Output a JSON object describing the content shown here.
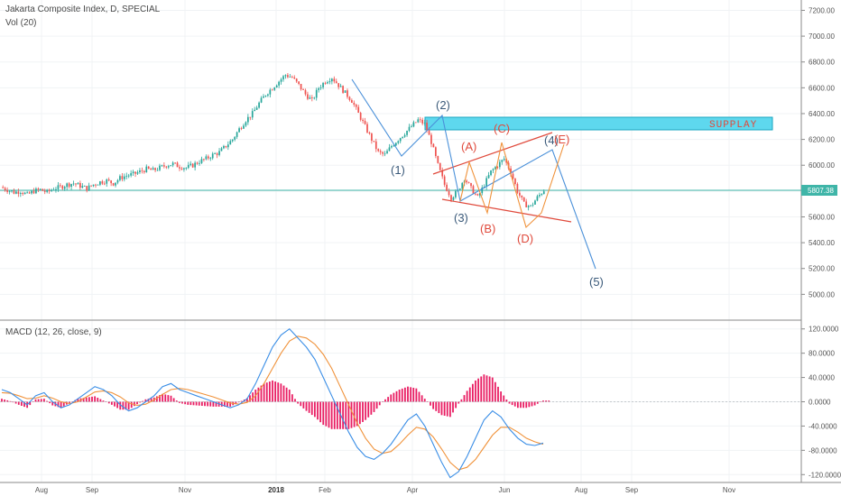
{
  "legend": {
    "title": "Jakarta Composite Index, D, SPECIAL",
    "volume": "Vol (20)",
    "macd": "MACD (12, 26, close, 9)"
  },
  "price_tag": "5807.38",
  "colors": {
    "bull": "#26a69a",
    "bear": "#ef5350",
    "blue_wave": "#4a90d9",
    "orange_wave": "#f0923a",
    "red_channel": "#e04a3c",
    "supply_zone": "#5ed8ee",
    "price_line": "#3fb5a8",
    "macd_line": "#3a8ee6",
    "signal_line": "#f0923a",
    "hist_pos": "#e91e63",
    "hist_neg": "#e91e63"
  },
  "chart_data": [
    {
      "type": "candlestick",
      "title": "Jakarta Composite Index, D, SPECIAL",
      "ylim": [
        4800,
        7280
      ],
      "y_ticks": [
        "7200.00",
        "7000.00",
        "6800.00",
        "6600.00",
        "6400.00",
        "6200.00",
        "6000.00",
        "5800.00",
        "5600.00",
        "5400.00",
        "5200.00",
        "5000.00"
      ],
      "x_labels": [
        "Aug",
        "Sep",
        "Nov",
        "2018",
        "Feb",
        "Apr",
        "Jun",
        "Aug",
        "Sep",
        "Nov"
      ],
      "last_price": 5807.38,
      "close_path": [
        5830,
        5810,
        5790,
        5800,
        5770,
        5800,
        5810,
        5790,
        5820,
        5830,
        5850,
        5860,
        5840,
        5820,
        5850,
        5870,
        5880,
        5860,
        5900,
        5920,
        5930,
        5950,
        5970,
        5960,
        5980,
        6000,
        6010,
        5990,
        5980,
        6000,
        6030,
        6050,
        6080,
        6100,
        6150,
        6200,
        6280,
        6350,
        6400,
        6480,
        6550,
        6600,
        6650,
        6700,
        6680,
        6620,
        6550,
        6500,
        6600,
        6650,
        6680,
        6620,
        6560,
        6500,
        6400,
        6300,
        6200,
        6100,
        6080,
        6150,
        6200,
        6250,
        6300,
        6350,
        6320,
        6180,
        6000,
        5850,
        5750,
        5800,
        5900,
        5820,
        5750,
        5850,
        5950,
        6000,
        6050,
        5950,
        5800,
        5700,
        5680,
        5750,
        5807
      ],
      "annotations": {
        "blue_labels": [
          "(1)",
          "(2)",
          "(3)",
          "(4)",
          "(5)"
        ],
        "red_labels": [
          "(A)",
          "(B)",
          "(C)",
          "(D)",
          "(E)"
        ],
        "supply_label": "SUPPLAY"
      }
    },
    {
      "type": "line",
      "title": "MACD (12, 26, close, 9)",
      "ylim": [
        -130,
        130
      ],
      "y_ticks": [
        "120.0000",
        "80.0000",
        "40.0000",
        "0.0000",
        "-40.0000",
        "-80.0000",
        "-120.0000"
      ],
      "series": [
        {
          "name": "MACD",
          "values": [
            20,
            15,
            5,
            -5,
            10,
            15,
            0,
            -10,
            -5,
            5,
            15,
            25,
            20,
            10,
            -5,
            -15,
            -10,
            0,
            10,
            25,
            30,
            20,
            15,
            10,
            5,
            0,
            -5,
            -10,
            -5,
            5,
            30,
            60,
            90,
            110,
            120,
            105,
            90,
            70,
            40,
            10,
            -20,
            -50,
            -75,
            -90,
            -95,
            -85,
            -70,
            -50,
            -30,
            -20,
            -40,
            -70,
            -100,
            -125,
            -115,
            -90,
            -60,
            -30,
            -15,
            -25,
            -45,
            -60,
            -70,
            -72,
            -68
          ]
        },
        {
          "name": "Signal",
          "values": [
            15,
            14,
            10,
            5,
            6,
            10,
            6,
            0,
            -3,
            0,
            8,
            16,
            18,
            15,
            8,
            -2,
            -6,
            -4,
            3,
            12,
            20,
            22,
            20,
            16,
            12,
            8,
            3,
            -2,
            -4,
            -1,
            10,
            30,
            55,
            80,
            100,
            108,
            105,
            95,
            78,
            55,
            25,
            -5,
            -35,
            -60,
            -78,
            -85,
            -82,
            -70,
            -55,
            -42,
            -45,
            -58,
            -78,
            -100,
            -112,
            -108,
            -95,
            -75,
            -55,
            -42,
            -42,
            -50,
            -60,
            -66,
            -70
          ]
        },
        {
          "name": "Histogram",
          "values": [
            5,
            1,
            -5,
            -10,
            4,
            5,
            -6,
            -10,
            -2,
            5,
            7,
            9,
            2,
            -5,
            -13,
            -13,
            -4,
            4,
            7,
            13,
            10,
            -2,
            -5,
            -6,
            -7,
            -8,
            -8,
            -8,
            -1,
            6,
            20,
            30,
            35,
            30,
            20,
            -3,
            -15,
            -25,
            -38,
            -45,
            -45,
            -45,
            -40,
            -30,
            -17,
            0,
            12,
            20,
            25,
            22,
            5,
            -12,
            -22,
            -25,
            -3,
            18,
            35,
            45,
            40,
            17,
            -3,
            -10,
            -10,
            -6,
            2
          ]
        }
      ]
    }
  ]
}
